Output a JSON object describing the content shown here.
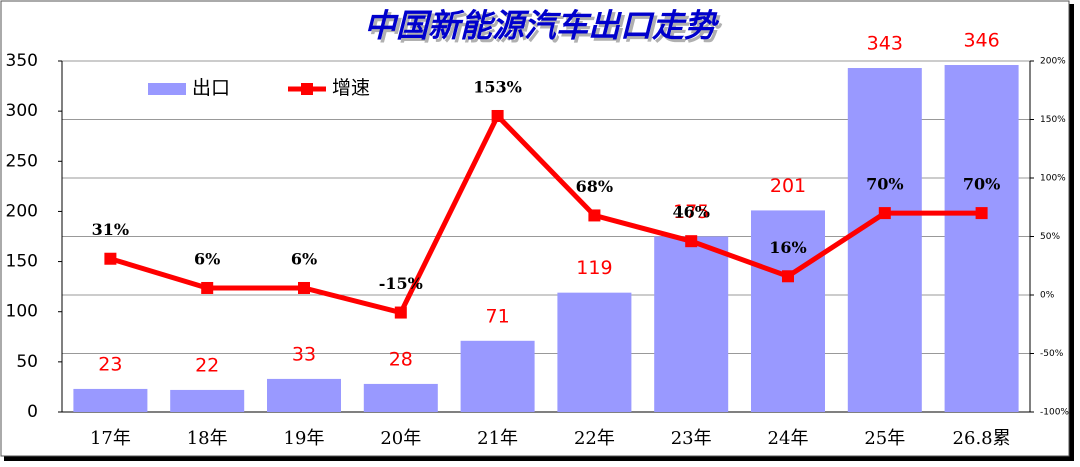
{
  "chart_data": {
    "type": "bar-line",
    "title": "中国新能源汽车出口走势",
    "categories": [
      "17年",
      "18年",
      "19年",
      "20年",
      "21年",
      "22年",
      "23年",
      "24年",
      "25年",
      "26.8累"
    ],
    "series": [
      {
        "name": "出口",
        "type": "bar",
        "color": "#9999ff",
        "label_color": "#ff0000",
        "values": [
          23,
          22,
          33,
          28,
          71,
          119,
          175,
          201,
          343,
          346
        ]
      },
      {
        "name": "增速",
        "type": "line",
        "axis": "y2",
        "color": "#ff0000",
        "label_color": "#000000",
        "values": [
          31,
          6,
          6,
          -15,
          153,
          68,
          46,
          16,
          70,
          70
        ],
        "value_labels": [
          "31%",
          "6%",
          "6%",
          "-15%",
          "153%",
          "68%",
          "46%",
          "16%",
          "70%",
          "70%"
        ]
      }
    ],
    "ylim": [
      0,
      350
    ],
    "yticks": [
      0,
      50,
      100,
      150,
      200,
      250,
      300,
      350
    ],
    "y2lim": [
      -100,
      200
    ],
    "y2ticks": [
      {
        "value": -100,
        "label": "-100%"
      },
      {
        "value": -50,
        "label": "-50%"
      },
      {
        "value": 0,
        "label": "0%"
      },
      {
        "value": 50,
        "label": "50%"
      },
      {
        "value": 100,
        "label": "100%"
      },
      {
        "value": 150,
        "label": "150%"
      },
      {
        "value": 200,
        "label": "200%"
      }
    ],
    "grid": true
  }
}
